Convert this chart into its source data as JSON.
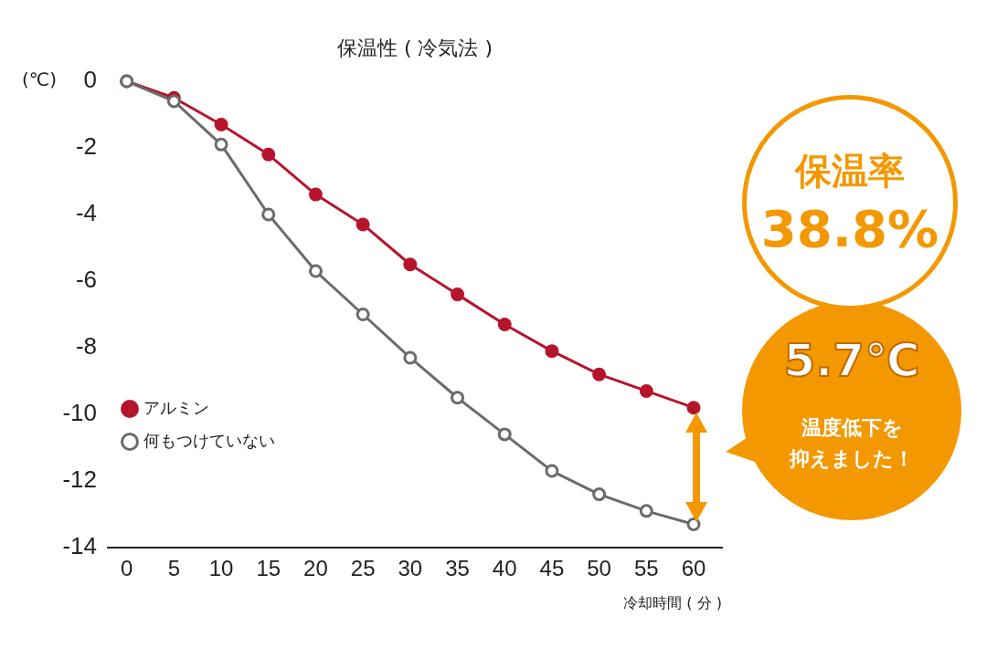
{
  "chart_data": {
    "type": "line",
    "title": "保温性 ( 冷気法 )",
    "xlabel": "冷却時間 ( 分 )",
    "ylabel": "(℃)",
    "x": [
      0,
      5,
      10,
      15,
      20,
      25,
      30,
      35,
      40,
      45,
      50,
      55,
      60
    ],
    "series": [
      {
        "name": "アルミン",
        "color": "#b5152b",
        "values": [
          0,
          -0.5,
          -1.3,
          -2.2,
          -3.4,
          -4.3,
          -5.5,
          -6.4,
          -7.3,
          -8.1,
          -8.8,
          -9.3,
          -9.8
        ]
      },
      {
        "name": "何もつけていない",
        "color": "#6b6b6b",
        "values": [
          0,
          -0.6,
          -1.9,
          -4.0,
          -5.7,
          -7.0,
          -8.3,
          -9.5,
          -10.6,
          -11.7,
          -12.4,
          -12.9,
          -13.3
        ]
      }
    ],
    "xlim": [
      -2,
      63
    ],
    "xticks": [
      0,
      5,
      10,
      15,
      20,
      25,
      30,
      35,
      40,
      45,
      50,
      55,
      60
    ],
    "ylim": [
      -14,
      0
    ],
    "yticks": [
      0,
      -2,
      -4,
      -6,
      -8,
      -10,
      -12,
      -14
    ],
    "grid": false,
    "legend": "bottom left",
    "marker": "circle",
    "line_style": "solid",
    "annotations": [
      "保温率",
      "38.8%",
      "5.7℃",
      "温度低下を",
      "抑えました！"
    ]
  }
}
